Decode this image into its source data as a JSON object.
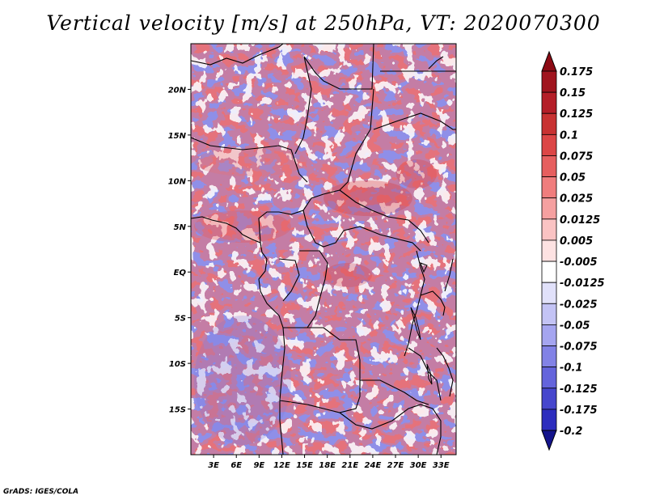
{
  "title": "Vertical velocity [m/s] at 250hPa, VT: 2020070300",
  "credit": "GrADS: IGES/COLA",
  "map": {
    "lon_range": [
      0,
      35
    ],
    "lat_range": [
      -20,
      25
    ],
    "lat_ticks": [
      {
        "value": 20,
        "label": "20N"
      },
      {
        "value": 15,
        "label": "15N"
      },
      {
        "value": 10,
        "label": "10N"
      },
      {
        "value": 5,
        "label": "5N"
      },
      {
        "value": 0,
        "label": "EQ"
      },
      {
        "value": -5,
        "label": "5S"
      },
      {
        "value": -10,
        "label": "10S"
      },
      {
        "value": -15,
        "label": "15S"
      }
    ],
    "lon_ticks": [
      {
        "value": 3,
        "label": "3E"
      },
      {
        "value": 6,
        "label": "6E"
      },
      {
        "value": 9,
        "label": "9E"
      },
      {
        "value": 12,
        "label": "12E"
      },
      {
        "value": 15,
        "label": "15E"
      },
      {
        "value": 18,
        "label": "18E"
      },
      {
        "value": 21,
        "label": "21E"
      },
      {
        "value": 24,
        "label": "24E"
      },
      {
        "value": 27,
        "label": "27E"
      },
      {
        "value": 30,
        "label": "30E"
      },
      {
        "value": 33,
        "label": "33E"
      }
    ]
  },
  "colorbar": {
    "levels": [
      {
        "label": "0.175",
        "color": "#a0141e"
      },
      {
        "label": "0.15",
        "color": "#b41e28"
      },
      {
        "label": "0.125",
        "color": "#c83232"
      },
      {
        "label": "0.1",
        "color": "#dc4646"
      },
      {
        "label": "0.075",
        "color": "#e65f5f"
      },
      {
        "label": "0.05",
        "color": "#f07d7d"
      },
      {
        "label": "0.025",
        "color": "#f5a0a0"
      },
      {
        "label": "0.0125",
        "color": "#fac3c3"
      },
      {
        "label": "0.005",
        "color": "#fde2e2"
      },
      {
        "label": "-0.005",
        "color": "#ffffff"
      },
      {
        "label": "-0.0125",
        "color": "#e1e1fa"
      },
      {
        "label": "-0.025",
        "color": "#c3c3f5"
      },
      {
        "label": "-0.05",
        "color": "#a5a5f0"
      },
      {
        "label": "-0.075",
        "color": "#8282e6"
      },
      {
        "label": "-0.1",
        "color": "#6464dc"
      },
      {
        "label": "-0.125",
        "color": "#4646cd"
      },
      {
        "label": "-0.175",
        "color": "#2d2dbe"
      },
      {
        "label": "-0.2",
        "color": "#1e1eaa"
      }
    ],
    "top_arrow_color": "#8c0a14",
    "bottom_arrow_color": "#14148c"
  },
  "colors": {
    "upward": "#f07d7d",
    "downward": "#8282e6",
    "near_zero": "#ffffff"
  }
}
